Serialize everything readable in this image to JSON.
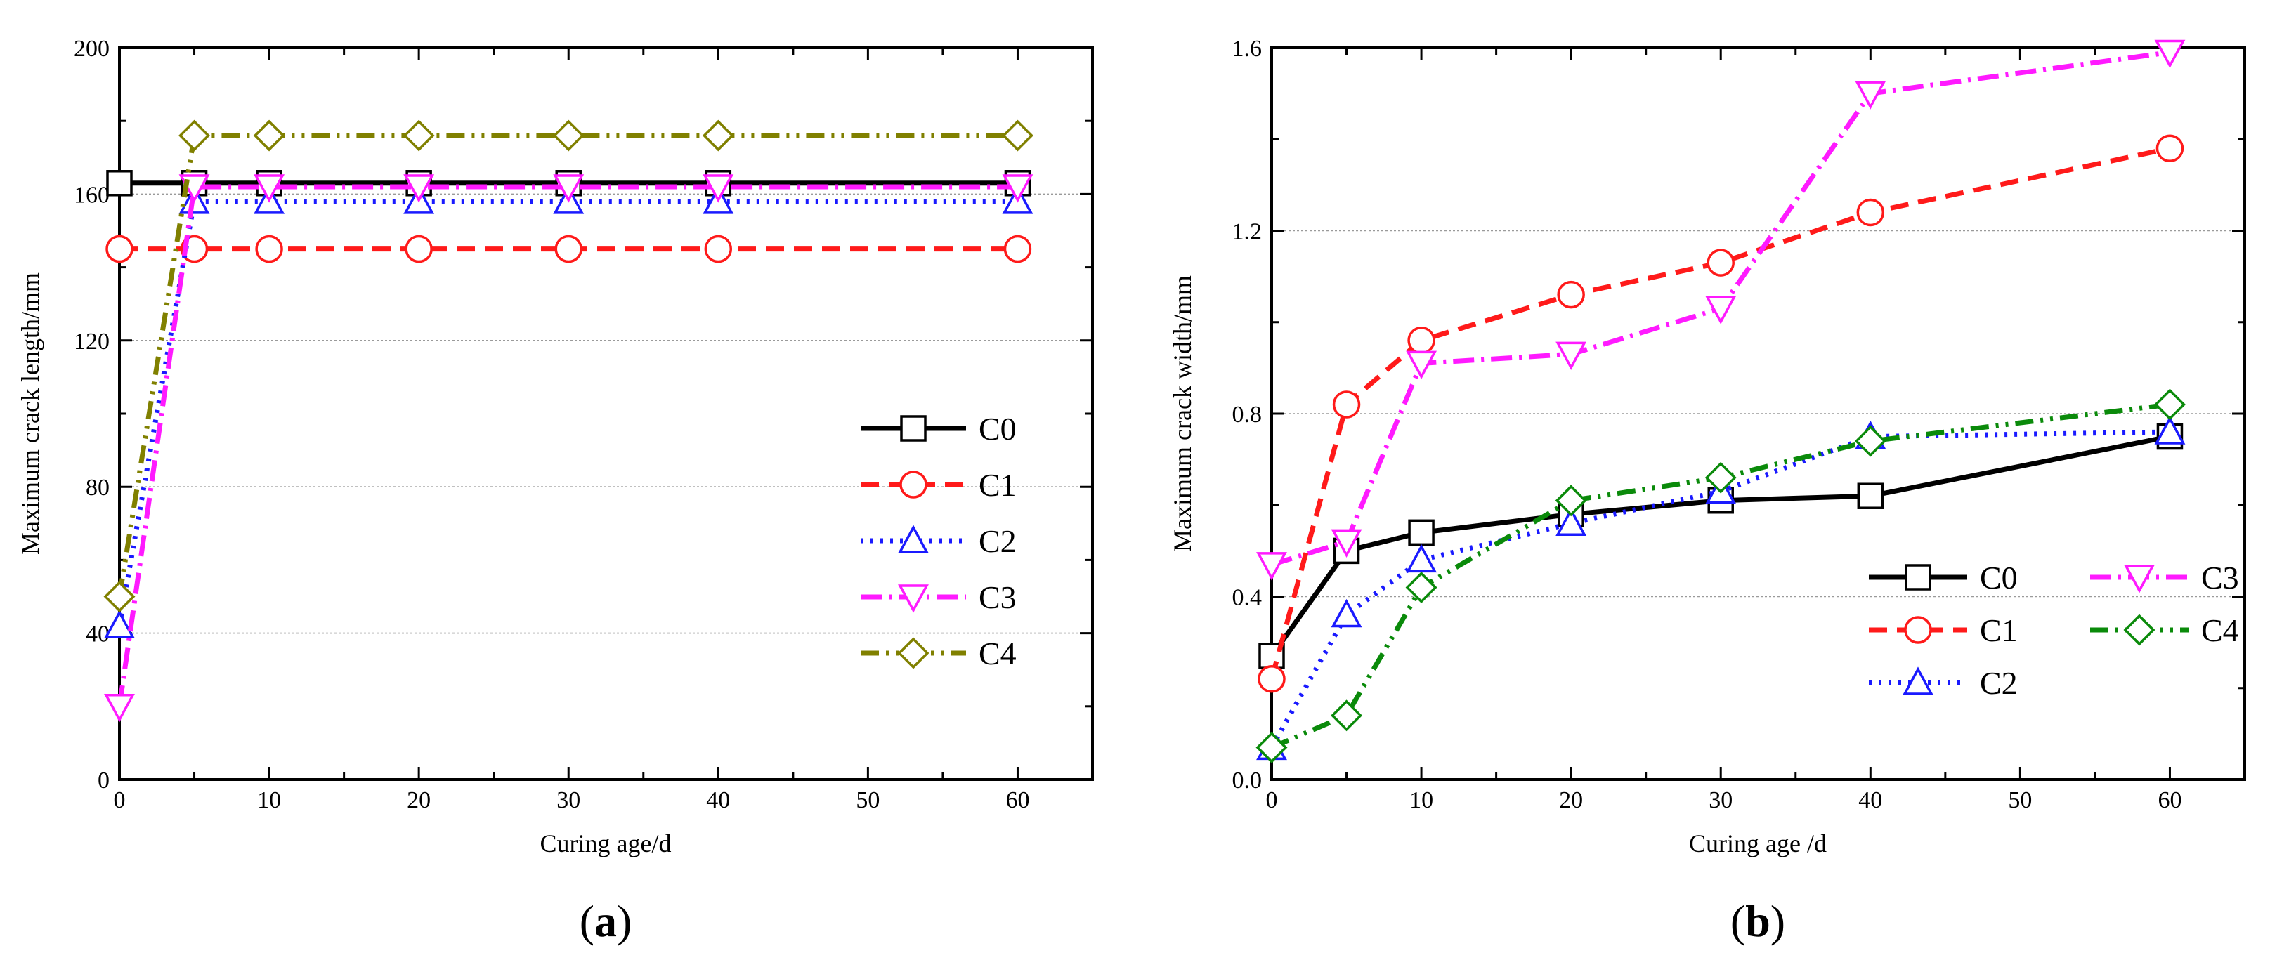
{
  "colors": {
    "C0": "#000000",
    "C1": "#ff1a1a",
    "C2": "#1a1aff",
    "C3": "#ff1aff",
    "C4a": "#808000",
    "C4b": "#0a8a0a"
  },
  "captions": {
    "a": {
      "open": "(",
      "letter": "a",
      "close": ")"
    },
    "b": {
      "open": "(",
      "letter": "b",
      "close": ")"
    }
  },
  "chart_data": [
    {
      "id": "a",
      "type": "line",
      "title": "",
      "xlabel": "Curing age/d",
      "ylabel": "Maximum crack length/mm",
      "xlim": [
        0,
        65
      ],
      "ylim": [
        0,
        200
      ],
      "xticks": [
        0,
        10,
        20,
        30,
        40,
        50,
        60
      ],
      "yticks": [
        0,
        40,
        80,
        120,
        160,
        200
      ],
      "grid_y": [
        40,
        80,
        120,
        160
      ],
      "legend_position": "center-right",
      "legend_layout": "single-column",
      "series": [
        {
          "name": "C0",
          "color_key": "C0",
          "marker": "square",
          "dash": "solid",
          "x": [
            0,
            5,
            10,
            20,
            30,
            40,
            60
          ],
          "y": [
            163,
            163,
            163,
            163,
            163,
            163,
            163
          ]
        },
        {
          "name": "C1",
          "color_key": "C1",
          "marker": "circle",
          "dash": "dash",
          "x": [
            0,
            5,
            10,
            20,
            30,
            40,
            60
          ],
          "y": [
            145,
            145,
            145,
            145,
            145,
            145,
            145
          ]
        },
        {
          "name": "C2",
          "color_key": "C2",
          "marker": "triangle-up",
          "dash": "dot",
          "x": [
            0,
            5,
            10,
            20,
            30,
            40,
            60
          ],
          "y": [
            42,
            158,
            158,
            158,
            158,
            158,
            158
          ]
        },
        {
          "name": "C3",
          "color_key": "C3",
          "marker": "triangle-down",
          "dash": "dashdot",
          "x": [
            0,
            5,
            10,
            20,
            30,
            40,
            60
          ],
          "y": [
            20,
            162,
            162,
            162,
            162,
            162,
            162
          ]
        },
        {
          "name": "C4",
          "color_key": "C4a",
          "marker": "diamond",
          "dash": "dashdotdot",
          "x": [
            0,
            5,
            10,
            20,
            30,
            40,
            60
          ],
          "y": [
            50,
            176,
            176,
            176,
            176,
            176,
            176
          ]
        }
      ]
    },
    {
      "id": "b",
      "type": "line",
      "title": "",
      "xlabel": "Curing age /d",
      "ylabel": "Maximum crack width/mm",
      "xlim": [
        0,
        65
      ],
      "ylim": [
        0,
        1.6
      ],
      "xticks": [
        0,
        10,
        20,
        30,
        40,
        50,
        60
      ],
      "yticks": [
        0.0,
        0.4,
        0.8,
        1.2,
        1.6
      ],
      "ytick_labels": [
        "0.0",
        "0.4",
        "0.8",
        "1.2",
        "1.6"
      ],
      "grid_y": [
        0.4,
        0.8,
        1.2
      ],
      "legend_position": "lower-right",
      "legend_layout": "two-column",
      "series": [
        {
          "name": "C0",
          "color_key": "C0",
          "marker": "square",
          "dash": "solid",
          "x": [
            0,
            5,
            10,
            20,
            30,
            40,
            60
          ],
          "y": [
            0.27,
            0.5,
            0.54,
            0.58,
            0.61,
            0.62,
            0.75
          ]
        },
        {
          "name": "C1",
          "color_key": "C1",
          "marker": "circle",
          "dash": "dash",
          "x": [
            0,
            5,
            10,
            20,
            30,
            40,
            60
          ],
          "y": [
            0.22,
            0.82,
            0.96,
            1.06,
            1.13,
            1.24,
            1.38
          ]
        },
        {
          "name": "C2",
          "color_key": "C2",
          "marker": "triangle-up",
          "dash": "dot",
          "x": [
            0,
            5,
            10,
            20,
            30,
            40,
            60
          ],
          "y": [
            0.07,
            0.36,
            0.48,
            0.56,
            0.63,
            0.75,
            0.76
          ]
        },
        {
          "name": "C3",
          "color_key": "C3",
          "marker": "triangle-down",
          "dash": "dashdot",
          "x": [
            0,
            5,
            10,
            20,
            30,
            40,
            60
          ],
          "y": [
            0.47,
            0.52,
            0.91,
            0.93,
            1.03,
            1.5,
            1.59
          ]
        },
        {
          "name": "C4",
          "color_key": "C4b",
          "marker": "diamond",
          "dash": "dashdotdot",
          "x": [
            0,
            5,
            10,
            20,
            30,
            40,
            60
          ],
          "y": [
            0.07,
            0.14,
            0.42,
            0.61,
            0.66,
            0.74,
            0.82
          ]
        }
      ]
    }
  ]
}
